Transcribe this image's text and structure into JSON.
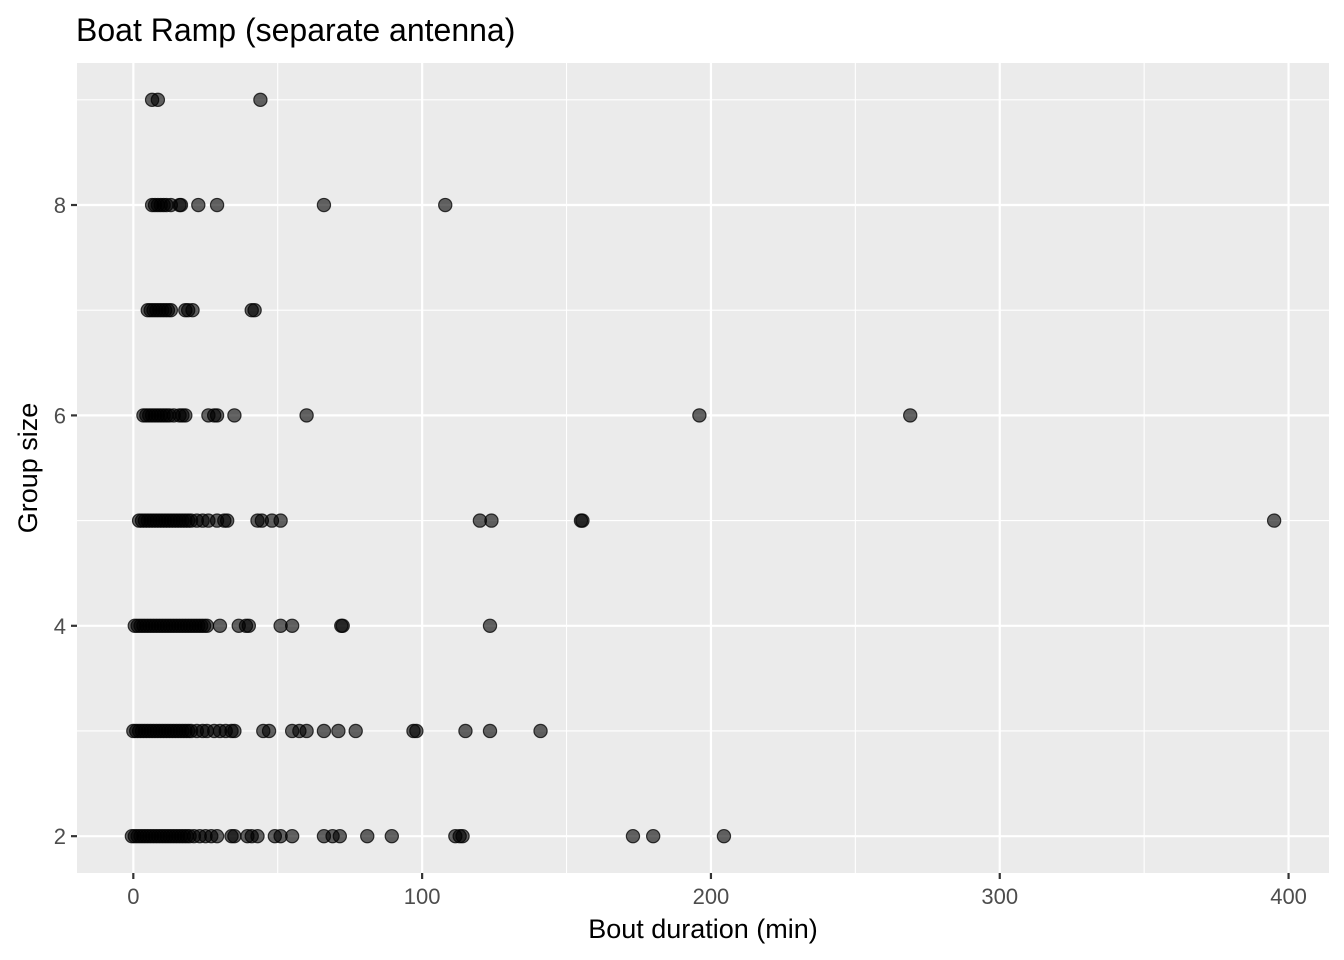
{
  "chart_data": {
    "type": "scatter",
    "title": "Boat Ramp (separate antenna)",
    "xlabel": "Bout duration (min)",
    "ylabel": "Group size",
    "xlim": [
      -19.5,
      414
    ],
    "ylim": [
      1.65,
      9.35
    ],
    "x_ticks": [
      0,
      100,
      200,
      300,
      400
    ],
    "x_tick_labels": [
      "0",
      "100",
      "200",
      "300",
      "400"
    ],
    "x_minor": [
      50,
      150,
      250,
      350
    ],
    "y_ticks": [
      2,
      4,
      6,
      8
    ],
    "y_tick_labels": [
      "2",
      "4",
      "6",
      "8"
    ],
    "y_minor": [
      3,
      5,
      7,
      9
    ],
    "grid": true,
    "background": "#ebebeb",
    "point_color": "#000000",
    "points": [
      {
        "x": 6.5,
        "y": 9
      },
      {
        "x": 8.5,
        "y": 9
      },
      {
        "x": 44,
        "y": 9
      },
      {
        "x": 6.5,
        "y": 8
      },
      {
        "x": 7.5,
        "y": 8
      },
      {
        "x": 8.5,
        "y": 8
      },
      {
        "x": 9.5,
        "y": 8
      },
      {
        "x": 10.5,
        "y": 8
      },
      {
        "x": 11.5,
        "y": 8
      },
      {
        "x": 13,
        "y": 8
      },
      {
        "x": 16,
        "y": 8
      },
      {
        "x": 16.5,
        "y": 8
      },
      {
        "x": 22.5,
        "y": 8
      },
      {
        "x": 29,
        "y": 8
      },
      {
        "x": 66,
        "y": 8
      },
      {
        "x": 108,
        "y": 8
      },
      {
        "x": 5,
        "y": 7
      },
      {
        "x": 6,
        "y": 7
      },
      {
        "x": 7,
        "y": 7
      },
      {
        "x": 8,
        "y": 7
      },
      {
        "x": 9,
        "y": 7
      },
      {
        "x": 10,
        "y": 7
      },
      {
        "x": 11,
        "y": 7
      },
      {
        "x": 12,
        "y": 7
      },
      {
        "x": 13,
        "y": 7
      },
      {
        "x": 18,
        "y": 7
      },
      {
        "x": 19,
        "y": 7
      },
      {
        "x": 20.5,
        "y": 7
      },
      {
        "x": 41,
        "y": 7
      },
      {
        "x": 42,
        "y": 7
      },
      {
        "x": 3.5,
        "y": 6
      },
      {
        "x": 4.5,
        "y": 6
      },
      {
        "x": 5.5,
        "y": 6
      },
      {
        "x": 6.5,
        "y": 6
      },
      {
        "x": 7.5,
        "y": 6
      },
      {
        "x": 8.5,
        "y": 6
      },
      {
        "x": 9.5,
        "y": 6
      },
      {
        "x": 10.5,
        "y": 6
      },
      {
        "x": 11.5,
        "y": 6
      },
      {
        "x": 12.5,
        "y": 6
      },
      {
        "x": 14,
        "y": 6
      },
      {
        "x": 16,
        "y": 6
      },
      {
        "x": 17,
        "y": 6
      },
      {
        "x": 18,
        "y": 6
      },
      {
        "x": 26,
        "y": 6
      },
      {
        "x": 28,
        "y": 6
      },
      {
        "x": 29,
        "y": 6
      },
      {
        "x": 35,
        "y": 6
      },
      {
        "x": 60,
        "y": 6
      },
      {
        "x": 196,
        "y": 6
      },
      {
        "x": 269,
        "y": 6
      },
      {
        "x": 2,
        "y": 5
      },
      {
        "x": 3,
        "y": 5
      },
      {
        "x": 4,
        "y": 5
      },
      {
        "x": 5,
        "y": 5
      },
      {
        "x": 6,
        "y": 5
      },
      {
        "x": 7,
        "y": 5
      },
      {
        "x": 8,
        "y": 5
      },
      {
        "x": 9,
        "y": 5
      },
      {
        "x": 10,
        "y": 5
      },
      {
        "x": 11,
        "y": 5
      },
      {
        "x": 12,
        "y": 5
      },
      {
        "x": 13,
        "y": 5
      },
      {
        "x": 14,
        "y": 5
      },
      {
        "x": 15,
        "y": 5
      },
      {
        "x": 16,
        "y": 5
      },
      {
        "x": 17,
        "y": 5
      },
      {
        "x": 18,
        "y": 5
      },
      {
        "x": 19,
        "y": 5
      },
      {
        "x": 20,
        "y": 5
      },
      {
        "x": 22,
        "y": 5
      },
      {
        "x": 24,
        "y": 5
      },
      {
        "x": 26,
        "y": 5
      },
      {
        "x": 29,
        "y": 5
      },
      {
        "x": 31.5,
        "y": 5
      },
      {
        "x": 32.5,
        "y": 5
      },
      {
        "x": 43,
        "y": 5
      },
      {
        "x": 44.5,
        "y": 5
      },
      {
        "x": 48,
        "y": 5
      },
      {
        "x": 51,
        "y": 5
      },
      {
        "x": 120,
        "y": 5
      },
      {
        "x": 124,
        "y": 5
      },
      {
        "x": 155,
        "y": 5
      },
      {
        "x": 155.5,
        "y": 5
      },
      {
        "x": 395,
        "y": 5
      },
      {
        "x": 0.5,
        "y": 4
      },
      {
        "x": 1.5,
        "y": 4
      },
      {
        "x": 2.5,
        "y": 4
      },
      {
        "x": 3.5,
        "y": 4
      },
      {
        "x": 4.5,
        "y": 4
      },
      {
        "x": 5.5,
        "y": 4
      },
      {
        "x": 6.5,
        "y": 4
      },
      {
        "x": 7.5,
        "y": 4
      },
      {
        "x": 8.5,
        "y": 4
      },
      {
        "x": 9.5,
        "y": 4
      },
      {
        "x": 10.5,
        "y": 4
      },
      {
        "x": 11.5,
        "y": 4
      },
      {
        "x": 12.5,
        "y": 4
      },
      {
        "x": 13.5,
        "y": 4
      },
      {
        "x": 14.5,
        "y": 4
      },
      {
        "x": 15.5,
        "y": 4
      },
      {
        "x": 16.5,
        "y": 4
      },
      {
        "x": 17.5,
        "y": 4
      },
      {
        "x": 18.5,
        "y": 4
      },
      {
        "x": 19.5,
        "y": 4
      },
      {
        "x": 20.5,
        "y": 4
      },
      {
        "x": 21.5,
        "y": 4
      },
      {
        "x": 22.5,
        "y": 4
      },
      {
        "x": 23.5,
        "y": 4
      },
      {
        "x": 24.5,
        "y": 4
      },
      {
        "x": 25.5,
        "y": 4
      },
      {
        "x": 30,
        "y": 4
      },
      {
        "x": 36.5,
        "y": 4
      },
      {
        "x": 39,
        "y": 4
      },
      {
        "x": 40,
        "y": 4
      },
      {
        "x": 51,
        "y": 4
      },
      {
        "x": 55,
        "y": 4
      },
      {
        "x": 72,
        "y": 4
      },
      {
        "x": 72.5,
        "y": 4
      },
      {
        "x": 123.5,
        "y": 4
      },
      {
        "x": 0,
        "y": 3
      },
      {
        "x": 1,
        "y": 3
      },
      {
        "x": 2,
        "y": 3
      },
      {
        "x": 3,
        "y": 3
      },
      {
        "x": 4,
        "y": 3
      },
      {
        "x": 5,
        "y": 3
      },
      {
        "x": 6,
        "y": 3
      },
      {
        "x": 7,
        "y": 3
      },
      {
        "x": 8,
        "y": 3
      },
      {
        "x": 9,
        "y": 3
      },
      {
        "x": 10,
        "y": 3
      },
      {
        "x": 11,
        "y": 3
      },
      {
        "x": 12,
        "y": 3
      },
      {
        "x": 13,
        "y": 3
      },
      {
        "x": 14,
        "y": 3
      },
      {
        "x": 15,
        "y": 3
      },
      {
        "x": 16,
        "y": 3
      },
      {
        "x": 17,
        "y": 3
      },
      {
        "x": 18,
        "y": 3
      },
      {
        "x": 19,
        "y": 3
      },
      {
        "x": 20,
        "y": 3
      },
      {
        "x": 22,
        "y": 3
      },
      {
        "x": 24,
        "y": 3
      },
      {
        "x": 25.5,
        "y": 3
      },
      {
        "x": 28,
        "y": 3
      },
      {
        "x": 30,
        "y": 3
      },
      {
        "x": 32,
        "y": 3
      },
      {
        "x": 34,
        "y": 3
      },
      {
        "x": 35,
        "y": 3
      },
      {
        "x": 45,
        "y": 3
      },
      {
        "x": 47,
        "y": 3
      },
      {
        "x": 55,
        "y": 3
      },
      {
        "x": 57.5,
        "y": 3
      },
      {
        "x": 60,
        "y": 3
      },
      {
        "x": 66,
        "y": 3
      },
      {
        "x": 71,
        "y": 3
      },
      {
        "x": 77,
        "y": 3
      },
      {
        "x": 97,
        "y": 3
      },
      {
        "x": 98,
        "y": 3
      },
      {
        "x": 115,
        "y": 3
      },
      {
        "x": 123.5,
        "y": 3
      },
      {
        "x": 141,
        "y": 3
      },
      {
        "x": -0.5,
        "y": 2
      },
      {
        "x": 0.5,
        "y": 2
      },
      {
        "x": 1.5,
        "y": 2
      },
      {
        "x": 2.5,
        "y": 2
      },
      {
        "x": 3.5,
        "y": 2
      },
      {
        "x": 4.5,
        "y": 2
      },
      {
        "x": 5.5,
        "y": 2
      },
      {
        "x": 6.5,
        "y": 2
      },
      {
        "x": 7.5,
        "y": 2
      },
      {
        "x": 8.5,
        "y": 2
      },
      {
        "x": 9.5,
        "y": 2
      },
      {
        "x": 10.5,
        "y": 2
      },
      {
        "x": 11.5,
        "y": 2
      },
      {
        "x": 12.5,
        "y": 2
      },
      {
        "x": 13.5,
        "y": 2
      },
      {
        "x": 14.5,
        "y": 2
      },
      {
        "x": 15.5,
        "y": 2
      },
      {
        "x": 16.5,
        "y": 2
      },
      {
        "x": 17.5,
        "y": 2
      },
      {
        "x": 18.5,
        "y": 2
      },
      {
        "x": 19.5,
        "y": 2
      },
      {
        "x": 21,
        "y": 2
      },
      {
        "x": 23,
        "y": 2
      },
      {
        "x": 25,
        "y": 2
      },
      {
        "x": 27,
        "y": 2
      },
      {
        "x": 29,
        "y": 2
      },
      {
        "x": 34,
        "y": 2
      },
      {
        "x": 35,
        "y": 2
      },
      {
        "x": 39.5,
        "y": 2
      },
      {
        "x": 41,
        "y": 2
      },
      {
        "x": 43,
        "y": 2
      },
      {
        "x": 49,
        "y": 2
      },
      {
        "x": 51,
        "y": 2
      },
      {
        "x": 55,
        "y": 2
      },
      {
        "x": 66,
        "y": 2
      },
      {
        "x": 69,
        "y": 2
      },
      {
        "x": 71.5,
        "y": 2
      },
      {
        "x": 81,
        "y": 2
      },
      {
        "x": 89.5,
        "y": 2
      },
      {
        "x": 111.5,
        "y": 2
      },
      {
        "x": 113,
        "y": 2
      },
      {
        "x": 114,
        "y": 2
      },
      {
        "x": 173,
        "y": 2
      },
      {
        "x": 180,
        "y": 2
      },
      {
        "x": 204.5,
        "y": 2
      }
    ]
  }
}
